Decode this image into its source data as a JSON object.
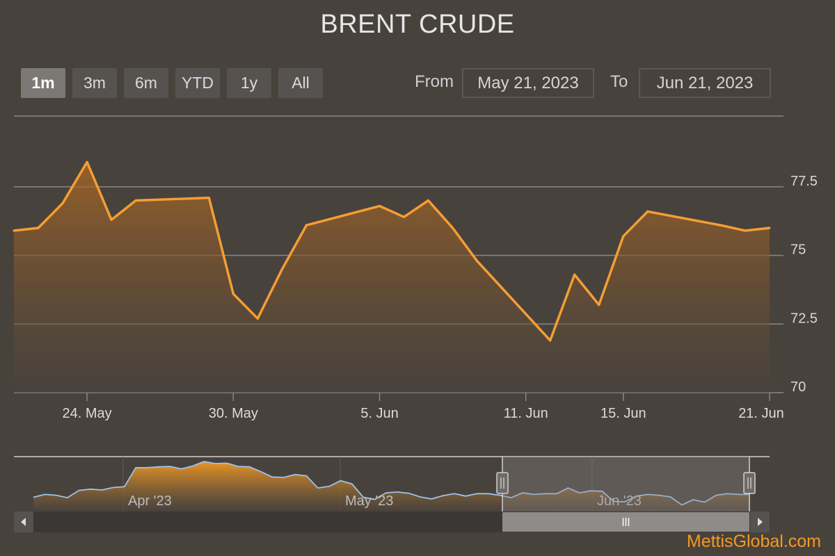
{
  "title": "BRENT CRUDE",
  "range_selector": {
    "buttons": [
      {
        "label": "1m",
        "active": true
      },
      {
        "label": "3m",
        "active": false
      },
      {
        "label": "6m",
        "active": false
      },
      {
        "label": "YTD",
        "active": false
      },
      {
        "label": "1y",
        "active": false
      },
      {
        "label": "All",
        "active": false
      }
    ],
    "from_label": "From",
    "from_value": "May 21, 2023",
    "to_label": "To",
    "to_value": "Jun 21, 2023"
  },
  "colors": {
    "line": "#f59e33",
    "navigator_line": "#9ec3ea",
    "grid": "#8a8683",
    "background": "#48423d"
  },
  "chart_data": {
    "type": "area",
    "title": "BRENT CRUDE",
    "y_ticks": [
      "77.5",
      "75",
      "72.5",
      "70"
    ],
    "ylim": [
      70,
      80
    ],
    "x_ticks": [
      "24. May",
      "30. May",
      "5. Jun",
      "11. Jun",
      "15. Jun",
      "21. Jun"
    ],
    "series": [
      {
        "x": [
          "2023-05-21",
          "2023-05-22",
          "2023-05-23",
          "2023-05-24",
          "2023-05-25",
          "2023-05-26",
          "2023-05-29",
          "2023-05-30",
          "2023-05-31",
          "2023-06-01",
          "2023-06-02",
          "2023-06-05",
          "2023-06-06",
          "2023-06-07",
          "2023-06-08",
          "2023-06-09",
          "2023-06-12",
          "2023-06-13",
          "2023-06-14",
          "2023-06-15",
          "2023-06-16",
          "2023-06-19",
          "2023-06-20",
          "2023-06-21"
        ],
        "y": [
          75.9,
          76.0,
          76.9,
          78.4,
          76.3,
          77.0,
          77.1,
          73.6,
          72.7,
          74.5,
          76.1,
          76.8,
          76.4,
          77.0,
          76.0,
          74.8,
          71.9,
          74.3,
          73.2,
          75.7,
          76.6,
          76.1,
          75.9,
          76.0
        ]
      }
    ],
    "navigator": {
      "labels": [
        "Apr '23",
        "May '23",
        "Jun '23"
      ],
      "values": [
        70.5,
        71.2,
        71.0,
        70.4,
        72.2,
        72.5,
        72.3,
        72.9,
        73.1,
        77.8,
        77.8,
        78.0,
        78.1,
        77.5,
        78.2,
        79.3,
        78.8,
        78.9,
        78.1,
        78.0,
        76.8,
        75.5,
        75.4,
        76.1,
        75.8,
        72.8,
        73.2,
        74.6,
        73.8,
        70.5,
        70.0,
        71.6,
        71.8,
        71.5,
        70.6,
        70.1,
        70.9,
        71.4,
        70.8,
        71.4,
        71.4,
        71.0,
        70.4,
        71.6,
        71.2,
        71.4,
        71.4,
        72.8,
        71.6,
        72.1,
        72.0,
        69.5,
        69.4,
        70.8,
        71.2,
        71.0,
        70.6,
        68.6,
        69.9,
        69.3,
        71.0,
        71.4,
        71.2,
        71.2
      ],
      "window_start": "May 21, 2023",
      "window_end": "Jun 21, 2023"
    }
  },
  "brand": "MettisGlobal.com"
}
